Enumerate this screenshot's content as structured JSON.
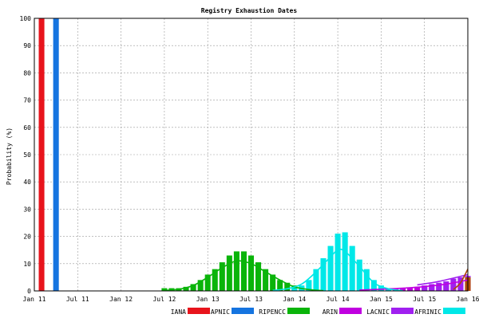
{
  "chart_data": {
    "type": "bar",
    "title": "Registry Exhaustion Dates",
    "xlabel": "",
    "ylabel": "Probability (%)",
    "ylim": [
      0,
      100
    ],
    "xlim": [
      "2011-01",
      "2016-01"
    ],
    "grid": true,
    "legend_position": "bottom",
    "x_ticks": [
      "Jan 11",
      "Jul 11",
      "Jan 12",
      "Jul 12",
      "Jan 13",
      "Jul 13",
      "Jan 14",
      "Jul 14",
      "Jan 15",
      "Jul 15",
      "Jan 16"
    ],
    "x_tick_dates": [
      "2011-01",
      "2011-07",
      "2012-01",
      "2012-07",
      "2013-01",
      "2013-07",
      "2014-01",
      "2014-07",
      "2015-01",
      "2015-07",
      "2016-01"
    ],
    "y_ticks": [
      0,
      10,
      20,
      30,
      40,
      50,
      60,
      70,
      80,
      90,
      100
    ],
    "series": [
      {
        "name": "IANA",
        "color": "#e8141c",
        "bars": [
          {
            "x": "2011-02",
            "y": 100
          }
        ]
      },
      {
        "name": "APNIC",
        "color": "#1574e0",
        "bars": [
          {
            "x": "2011-04",
            "y": 100
          }
        ]
      },
      {
        "name": "RIPENCC",
        "color": "#0ab40a",
        "bars": [
          {
            "x": "2012-07",
            "y": 1
          },
          {
            "x": "2012-08",
            "y": 1
          },
          {
            "x": "2012-09",
            "y": 1
          },
          {
            "x": "2012-10",
            "y": 1.5
          },
          {
            "x": "2012-11",
            "y": 2.5
          },
          {
            "x": "2012-12",
            "y": 4
          },
          {
            "x": "2013-01",
            "y": 6
          },
          {
            "x": "2013-02",
            "y": 8
          },
          {
            "x": "2013-03",
            "y": 10.5
          },
          {
            "x": "2013-04",
            "y": 13
          },
          {
            "x": "2013-05",
            "y": 14.5
          },
          {
            "x": "2013-06",
            "y": 14.5
          },
          {
            "x": "2013-07",
            "y": 13
          },
          {
            "x": "2013-08",
            "y": 10.5
          },
          {
            "x": "2013-09",
            "y": 8
          },
          {
            "x": "2013-10",
            "y": 6
          },
          {
            "x": "2013-11",
            "y": 4
          },
          {
            "x": "2013-12",
            "y": 3
          },
          {
            "x": "2014-01",
            "y": 2
          },
          {
            "x": "2014-02",
            "y": 1.5
          },
          {
            "x": "2014-03",
            "y": 1
          }
        ],
        "curve": [
          {
            "x": "2012-07",
            "y": 0.2
          },
          {
            "x": "2012-09",
            "y": 0.6
          },
          {
            "x": "2012-11",
            "y": 2
          },
          {
            "x": "2013-01",
            "y": 5
          },
          {
            "x": "2013-03",
            "y": 8.5
          },
          {
            "x": "2013-05",
            "y": 11
          },
          {
            "x": "2013-07",
            "y": 10
          },
          {
            "x": "2013-09",
            "y": 7
          },
          {
            "x": "2013-11",
            "y": 4
          },
          {
            "x": "2014-01",
            "y": 1.5
          },
          {
            "x": "2014-03",
            "y": 0.5
          },
          {
            "x": "2014-05",
            "y": 0.1
          }
        ]
      },
      {
        "name": "ARIN",
        "color": "#c000e0",
        "bars": [
          {
            "x": "2015-01",
            "y": 1
          },
          {
            "x": "2015-02",
            "y": 1
          },
          {
            "x": "2015-03",
            "y": 1
          },
          {
            "x": "2015-04",
            "y": 1
          },
          {
            "x": "2015-05",
            "y": 1
          },
          {
            "x": "2015-06",
            "y": 1.5
          },
          {
            "x": "2015-07",
            "y": 1.5
          },
          {
            "x": "2015-08",
            "y": 2
          },
          {
            "x": "2015-09",
            "y": 2
          },
          {
            "x": "2015-10",
            "y": 2.5
          },
          {
            "x": "2015-11",
            "y": 3
          },
          {
            "x": "2015-12",
            "y": 3.5
          },
          {
            "x": "2016-01",
            "y": 4
          }
        ],
        "curve": [
          {
            "x": "2014-10",
            "y": 0.3
          },
          {
            "x": "2015-01",
            "y": 0.6
          },
          {
            "x": "2015-04",
            "y": 1
          },
          {
            "x": "2015-07",
            "y": 1.6
          },
          {
            "x": "2015-10",
            "y": 2.5
          },
          {
            "x": "2016-01",
            "y": 4
          }
        ]
      },
      {
        "name": "LACNIC",
        "color": "#a020f0",
        "bars": [
          {
            "x": "2015-07",
            "y": 2
          },
          {
            "x": "2015-08",
            "y": 2.5
          },
          {
            "x": "2015-09",
            "y": 3
          },
          {
            "x": "2015-10",
            "y": 3.5
          },
          {
            "x": "2015-11",
            "y": 4.5
          },
          {
            "x": "2015-12",
            "y": 5
          },
          {
            "x": "2016-01",
            "y": 5.5
          }
        ],
        "curve": [
          {
            "x": "2015-06",
            "y": 2.2
          },
          {
            "x": "2015-09",
            "y": 3.5
          },
          {
            "x": "2016-01",
            "y": 6
          }
        ]
      },
      {
        "name": "AFRINIC",
        "color": "#00e8e8",
        "bars": [
          {
            "x": "2014-01",
            "y": 1
          },
          {
            "x": "2014-02",
            "y": 2
          },
          {
            "x": "2014-03",
            "y": 4
          },
          {
            "x": "2014-04",
            "y": 8
          },
          {
            "x": "2014-05",
            "y": 12
          },
          {
            "x": "2014-06",
            "y": 16.5
          },
          {
            "x": "2014-07",
            "y": 21
          },
          {
            "x": "2014-08",
            "y": 21.5
          },
          {
            "x": "2014-09",
            "y": 16.5
          },
          {
            "x": "2014-10",
            "y": 11.5
          },
          {
            "x": "2014-11",
            "y": 8
          },
          {
            "x": "2014-12",
            "y": 4
          },
          {
            "x": "2015-01",
            "y": 2
          },
          {
            "x": "2015-02",
            "y": 1
          }
        ],
        "curve": [
          {
            "x": "2013-10",
            "y": 0.2
          },
          {
            "x": "2013-12",
            "y": 0.8
          },
          {
            "x": "2014-02",
            "y": 2.5
          },
          {
            "x": "2014-04",
            "y": 7
          },
          {
            "x": "2014-06",
            "y": 12.5
          },
          {
            "x": "2014-07",
            "y": 15
          },
          {
            "x": "2014-08",
            "y": 14.5
          },
          {
            "x": "2014-10",
            "y": 9
          },
          {
            "x": "2014-12",
            "y": 3
          },
          {
            "x": "2015-02",
            "y": 0.8
          },
          {
            "x": "2015-04",
            "y": 0.1
          }
        ]
      },
      {
        "name": "",
        "color": "#b04a0a",
        "bars": [
          {
            "x": "2016-01",
            "y": 5
          }
        ],
        "curve": [
          {
            "x": "2015-11",
            "y": 0.5
          },
          {
            "x": "2015-12",
            "y": 3
          },
          {
            "x": "2016-01",
            "y": 8
          }
        ]
      }
    ]
  }
}
